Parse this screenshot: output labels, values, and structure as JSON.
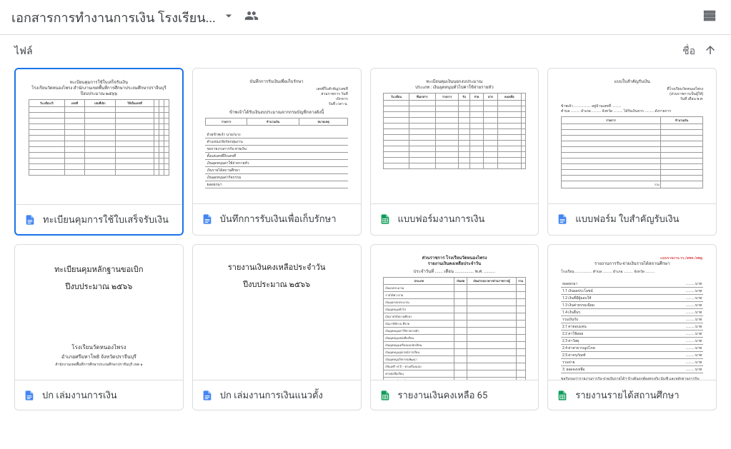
{
  "header": {
    "title": "เอกสารการทำงานการเงิน โรงเรียน...",
    "view_icon": "list-view"
  },
  "subheader": {
    "files_label": "ไฟล์",
    "sort_label": "ชื่อ"
  },
  "files": [
    {
      "name": "ทะเบียนคุมการใช้ใบเสร็จรับเงิน",
      "type": "docs",
      "selected": true,
      "thumb": "table1"
    },
    {
      "name": "บันทึกการรับเงินเพื่อเก็บรักษา",
      "type": "docs",
      "selected": false,
      "thumb": "lines1"
    },
    {
      "name": "แบบฟอร์มงานการเงิน",
      "type": "sheets",
      "selected": false,
      "thumb": "table2"
    },
    {
      "name": "แบบฟอร์ม ใบสำคัญรับเงิน",
      "type": "docs",
      "selected": false,
      "thumb": "form1"
    },
    {
      "name": "ปก เล่มงานการเงิน",
      "type": "docs",
      "selected": false,
      "thumb": "cover1"
    },
    {
      "name": "ปก เล่มงานการเงินแนวตั้ง",
      "type": "docs",
      "selected": false,
      "thumb": "cover2"
    },
    {
      "name": "รายงานเงินคงเหลือ 65",
      "type": "sheets",
      "selected": false,
      "thumb": "report1"
    },
    {
      "name": "รายงานรายได้สถานศึกษา",
      "type": "sheets",
      "selected": false,
      "thumb": "report2"
    }
  ],
  "thumbs": {
    "table1_title": "ทะเบียนคุมการใช้ใบเสร็จรับเงิน",
    "table1_sub": "โรงเรียนวัดหนองไพรง สำนักงานเขตพื้นที่การศึกษาประถมศึกษาปราจีนบุรี",
    "lines1_title": "บันทึกการรับเงินเพื่อเก็บรักษา",
    "table2_title": "ทะเบียนคุมเงินนอกงบประมาณ",
    "form1_title": "แบบใบสำคัญรับเงิน",
    "cover1_title": "ทะเบียนคุมหลักฐานขอเบิก",
    "cover1_year": "ปีงบประมาณ ๒๕๖๖",
    "cover1_school": "โรงเรียนวัดหนองไพรง",
    "cover1_addr": "อำเภอศรีมหาโพธิ จังหวัดปราจีนบุรี",
    "cover1_office": "สำนักงานเขตพื้นที่การศึกษาประถมศึกษาปราจีนบุรี เขต ๑",
    "cover2_title": "รายงานเงินคงเหลือประจำวัน",
    "cover2_year": "ปีงบประมาณ ๒๕๖๖",
    "report1_title": "ส่วนราชการ โรงเรียนวัดหนองไพรง",
    "report1_sub": "รายงานเงินคงเหลือประจำวัน",
    "report1_date": "ประจำวันที่ ....... เดือน ................. พ.ศ. ..........",
    "report2_title": "รายงานการรับ-จ่ายเงินรายได้สถานศึกษา"
  },
  "colors": {
    "border": "#dadce0",
    "selected_border": "#1a73e8",
    "text": "#3c4043",
    "muted": "#5f6368",
    "docs": "#4285f4",
    "sheets": "#0f9d58"
  }
}
